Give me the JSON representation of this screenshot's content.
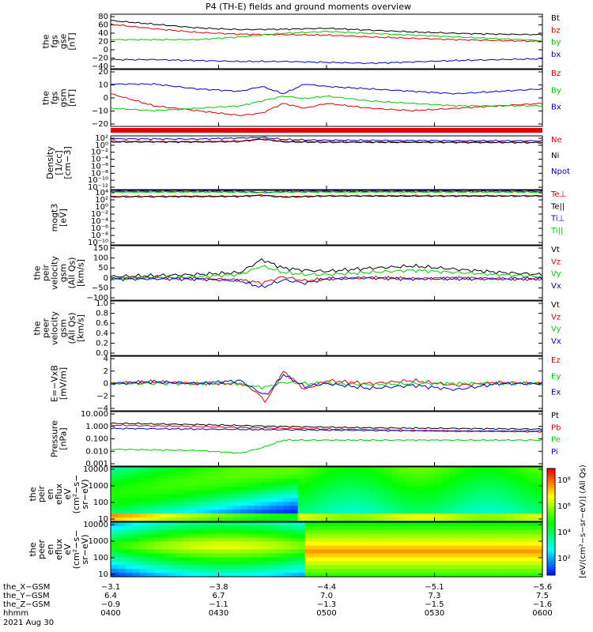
{
  "title": "P4 (TH-E) fields and ground moments overview",
  "colors": {
    "black": "#000000",
    "red": "#e00000",
    "green": "#00cc00",
    "blue": "#0000cc"
  },
  "chart_data": [
    {
      "id": "fgs_gse",
      "type": "line",
      "ylabel": [
        "the",
        "fgs",
        "gse",
        "[nT]"
      ],
      "yticks": [
        "80",
        "60",
        "40",
        "20",
        "0",
        "−20",
        "−40"
      ],
      "ylim": [
        -40,
        80
      ],
      "legend": [
        "Bt",
        "bz",
        "by",
        "bx"
      ],
      "series": [
        {
          "name": "Bt",
          "color": "#000000",
          "x": [
            0,
            0.1,
            0.2,
            0.3,
            0.4,
            0.5,
            0.6,
            0.7,
            0.8,
            0.9,
            1
          ],
          "values": [
            66,
            58,
            50,
            46,
            47,
            49,
            45,
            41,
            38,
            36,
            35
          ]
        },
        {
          "name": "bz",
          "color": "#e00000",
          "x": [
            0,
            0.1,
            0.2,
            0.3,
            0.4,
            0.5,
            0.6,
            0.7,
            0.8,
            0.9,
            1
          ],
          "values": [
            58,
            48,
            40,
            36,
            35,
            34,
            30,
            27,
            24,
            22,
            20
          ]
        },
        {
          "name": "by",
          "color": "#00cc00",
          "x": [
            0,
            0.1,
            0.2,
            0.3,
            0.4,
            0.5,
            0.6,
            0.7,
            0.8,
            0.9,
            1
          ],
          "values": [
            24,
            24,
            24,
            30,
            38,
            42,
            38,
            34,
            30,
            26,
            22
          ]
        },
        {
          "name": "bx",
          "color": "#0000cc",
          "x": [
            0,
            0.1,
            0.2,
            0.3,
            0.4,
            0.5,
            0.6,
            0.7,
            0.8,
            0.9,
            1
          ],
          "values": [
            -20,
            -20,
            -22,
            -24,
            -24,
            -26,
            -28,
            -25,
            -22,
            -20,
            -18
          ]
        }
      ]
    },
    {
      "id": "fgs_gsm",
      "type": "line",
      "ylabel": [
        "the",
        "fgs",
        "gsm",
        "[nT]"
      ],
      "yticks": [
        "20",
        "10",
        "0",
        "−10",
        "−20"
      ],
      "ylim": [
        -25,
        22
      ],
      "legend": [
        "Bz",
        "By",
        "Bx"
      ],
      "series": [
        {
          "name": "Bz",
          "color": "#e00000",
          "x": [
            0,
            0.1,
            0.2,
            0.3,
            0.35,
            0.4,
            0.45,
            0.5,
            0.6,
            0.7,
            0.8,
            0.9,
            1
          ],
          "values": [
            2,
            -8,
            -12,
            -16,
            -14,
            -6,
            -10,
            -6,
            -10,
            -12,
            -10,
            -8,
            -6
          ]
        },
        {
          "name": "By",
          "color": "#00cc00",
          "x": [
            0,
            0.1,
            0.2,
            0.3,
            0.35,
            0.4,
            0.45,
            0.5,
            0.6,
            0.7,
            0.8,
            0.9,
            1
          ],
          "values": [
            -10,
            -12,
            -10,
            -8,
            -4,
            0,
            -2,
            0,
            -4,
            -6,
            -8,
            -8,
            -8
          ]
        },
        {
          "name": "Bx",
          "color": "#0000cc",
          "x": [
            0,
            0.1,
            0.2,
            0.3,
            0.35,
            0.4,
            0.45,
            0.5,
            0.6,
            0.7,
            0.8,
            0.9,
            1
          ],
          "values": [
            10,
            10,
            6,
            4,
            8,
            2,
            10,
            8,
            6,
            4,
            2,
            4,
            6
          ]
        }
      ]
    },
    {
      "id": "density",
      "type": "line",
      "log": true,
      "ylabel": [
        "Density",
        "[1/cc]",
        "[cm−3]"
      ],
      "yticks": [
        "10²",
        "10⁰",
        "10⁻²",
        "10⁻⁴",
        "10⁻⁶",
        "10⁻⁸",
        "10⁻¹⁰",
        "10⁻¹²"
      ],
      "ylim": [
        -13,
        2
      ],
      "legend": [
        "Ne",
        "Ni",
        "Npot"
      ],
      "series": [
        {
          "name": "Ne",
          "color": "#e00000",
          "x": [
            0,
            0.2,
            0.3,
            0.35,
            0.4,
            0.5,
            0.7,
            1
          ],
          "values": [
            0.5,
            0.4,
            0.6,
            1,
            0.5,
            0.4,
            0.3,
            0.2
          ]
        },
        {
          "name": "Ni",
          "color": "#000000",
          "x": [
            0,
            0.2,
            0.3,
            0.35,
            0.4,
            0.5,
            0.7,
            1
          ],
          "values": [
            0.3,
            0.3,
            0.4,
            1.2,
            0.3,
            0.2,
            0.2,
            0.1
          ]
        },
        {
          "name": "Npot",
          "color": "#0000cc",
          "x": [
            0,
            0.2,
            0.3,
            0.35,
            0.4,
            0.5,
            0.7,
            1
          ],
          "values": [
            1.2,
            1.1,
            1.4,
            1.6,
            1.0,
            0.8,
            0.7,
            0.6
          ]
        }
      ]
    },
    {
      "id": "temp",
      "type": "line",
      "log": true,
      "ylabel": [
        "mogt3",
        "[eV]"
      ],
      "yticks": [
        "10⁴",
        "10²",
        "10⁰",
        "10⁻²",
        "10⁻⁴",
        "10⁻⁶",
        "10⁻⁸",
        "10⁻¹⁰"
      ],
      "ylim": [
        -11,
        4.3
      ],
      "legend": [
        "Te⊥",
        "Te||",
        "Ti⊥",
        "Ti||"
      ],
      "series": [
        {
          "name": "Te⊥",
          "color": "#e00000",
          "x": [
            0,
            0.3,
            0.35,
            0.4,
            0.5,
            1
          ],
          "values": [
            2.6,
            2.7,
            3.0,
            2.5,
            2.8,
            2.8
          ]
        },
        {
          "name": "Te||",
          "color": "#000000",
          "x": [
            0,
            0.3,
            0.35,
            0.4,
            0.5,
            1
          ],
          "values": [
            2.5,
            2.6,
            2.9,
            2.4,
            2.7,
            2.7
          ]
        },
        {
          "name": "Ti⊥",
          "color": "#0000cc",
          "x": [
            0,
            0.3,
            0.35,
            0.4,
            0.5,
            1
          ],
          "values": [
            4.0,
            4.0,
            3.7,
            4.0,
            4.0,
            4.0
          ]
        },
        {
          "name": "Ti||",
          "color": "#00cc00",
          "x": [
            0,
            0.3,
            0.35,
            0.4,
            0.5,
            1
          ],
          "values": [
            3.8,
            3.8,
            3.6,
            3.8,
            3.8,
            3.8
          ]
        }
      ]
    },
    {
      "id": "peir_velocity",
      "type": "line",
      "ylabel": [
        "the",
        "peir",
        "velocity",
        "gsm",
        "(All Qs)",
        "[km/s]"
      ],
      "yticks": [
        "150",
        "100",
        "50",
        "0",
        "−50",
        "−100"
      ],
      "ylim": [
        -100,
        155
      ],
      "legend": [
        "Vt",
        "Vz",
        "Vy",
        "Vx"
      ],
      "series": [
        {
          "name": "Vt",
          "color": "#000000",
          "x": [
            0,
            0.1,
            0.2,
            0.3,
            0.35,
            0.4,
            0.45,
            0.5,
            0.6,
            0.7,
            0.8,
            0.9,
            1
          ],
          "values": [
            10,
            15,
            20,
            30,
            90,
            50,
            40,
            35,
            50,
            60,
            45,
            30,
            20
          ]
        },
        {
          "name": "Vz",
          "color": "#e00000",
          "x": [
            0,
            0.1,
            0.2,
            0.3,
            0.35,
            0.4,
            0.45,
            0.5,
            0.6,
            0.7,
            0.8,
            0.9,
            1
          ],
          "values": [
            0,
            5,
            0,
            -5,
            -20,
            10,
            -10,
            0,
            5,
            0,
            5,
            0,
            0
          ]
        },
        {
          "name": "Vy",
          "color": "#00cc00",
          "x": [
            0,
            0.1,
            0.2,
            0.3,
            0.35,
            0.4,
            0.45,
            0.5,
            0.6,
            0.7,
            0.8,
            0.9,
            1
          ],
          "values": [
            0,
            5,
            10,
            20,
            60,
            30,
            20,
            20,
            30,
            40,
            30,
            20,
            10
          ]
        },
        {
          "name": "Vx",
          "color": "#0000cc",
          "x": [
            0,
            0.1,
            0.2,
            0.3,
            0.35,
            0.4,
            0.45,
            0.5,
            0.6,
            0.7,
            0.8,
            0.9,
            1
          ],
          "values": [
            0,
            0,
            0,
            -10,
            -40,
            -5,
            -20,
            0,
            5,
            0,
            0,
            0,
            0
          ]
        }
      ]
    },
    {
      "id": "peer_velocity",
      "type": "line",
      "ylabel": [
        "the",
        "peer",
        "velocity",
        "gsm",
        "(All Qs)",
        "[km/s]"
      ],
      "yticks": [
        "1.0",
        "0.8",
        "0.6",
        "0.4",
        "0.2",
        "0.0"
      ],
      "ylim": [
        0,
        1
      ],
      "legend": [
        "Vt",
        "Vz",
        "Vy",
        "Vx"
      ],
      "series": []
    },
    {
      "id": "efield",
      "type": "line",
      "ylabel": [
        "E=−VxB",
        "[mV/m]"
      ],
      "yticks": [
        "4",
        "2",
        "0",
        "−2",
        "−4"
      ],
      "ylim": [
        -4.5,
        4.5
      ],
      "legend": [
        "Ez",
        "Ey",
        "Ex"
      ],
      "series": [
        {
          "name": "Ez",
          "color": "#e00000",
          "x": [
            0,
            0.1,
            0.2,
            0.3,
            0.33,
            0.36,
            0.4,
            0.45,
            0.5,
            0.6,
            0.7,
            0.8,
            0.9,
            1
          ],
          "values": [
            0,
            0.3,
            0,
            0,
            -1,
            -3,
            2,
            -1,
            0.5,
            0,
            0.5,
            -0.3,
            0.2,
            0
          ]
        },
        {
          "name": "Ey",
          "color": "#00cc00",
          "x": [
            0,
            0.1,
            0.2,
            0.3,
            0.33,
            0.36,
            0.4,
            0.45,
            0.5,
            0.6,
            0.7,
            0.8,
            0.9,
            1
          ],
          "values": [
            0,
            0,
            0,
            0,
            -0.5,
            -0.6,
            0.2,
            0,
            0,
            -0.2,
            0,
            0,
            0,
            0
          ]
        },
        {
          "name": "Ex",
          "color": "#0000cc",
          "x": [
            0,
            0.1,
            0.2,
            0.3,
            0.33,
            0.36,
            0.4,
            0.45,
            0.5,
            0.6,
            0.7,
            0.8,
            0.9,
            1
          ],
          "values": [
            0,
            0.3,
            0,
            0.5,
            -0.8,
            -2,
            1.5,
            -0.5,
            0,
            -0.8,
            -0.3,
            -1,
            0,
            0
          ]
        }
      ]
    },
    {
      "id": "pressure",
      "type": "line",
      "log": true,
      "ylabel": [
        "Pressure",
        "[nPa]"
      ],
      "yticks": [
        "10.000",
        "1.000",
        "0.100",
        "0.010",
        "0.001"
      ],
      "ylim": [
        -3,
        1.2
      ],
      "legend": [
        "Pt",
        "Pb",
        "Pe",
        "Pi"
      ],
      "series": [
        {
          "name": "Pt",
          "color": "#000000",
          "x": [
            0,
            0.2,
            0.4,
            0.6,
            0.8,
            1
          ],
          "values": [
            0.3,
            0.2,
            0.05,
            -0.05,
            -0.1,
            -0.15
          ]
        },
        {
          "name": "Pb",
          "color": "#e00000",
          "x": [
            0,
            0.2,
            0.4,
            0.6,
            0.8,
            1
          ],
          "values": [
            0.15,
            0.05,
            -0.1,
            -0.2,
            -0.3,
            -0.35
          ]
        },
        {
          "name": "Pe",
          "color": "#00cc00",
          "x": [
            0,
            0.2,
            0.3,
            0.35,
            0.4,
            0.5,
            0.7,
            1
          ],
          "values": [
            -1.7,
            -1.8,
            -2.0,
            -1.6,
            -1.0,
            -1.0,
            -1.0,
            -1.0
          ]
        },
        {
          "name": "Pi",
          "color": "#0000cc",
          "x": [
            0,
            0.2,
            0.4,
            0.6,
            0.8,
            1
          ],
          "values": [
            -0.1,
            -0.15,
            -0.2,
            -0.25,
            -0.3,
            -0.3
          ]
        }
      ]
    },
    {
      "id": "peir_spec",
      "type": "heatmap",
      "ylabel": [
        "the",
        "peir",
        "en",
        "eflux",
        "eV",
        "(cm²−s−",
        "sr−eV)"
      ],
      "yticks": [
        "10000",
        "1000",
        "100",
        "10"
      ],
      "ylim": [
        5,
        20000
      ]
    },
    {
      "id": "peer_spec",
      "type": "heatmap",
      "ylabel": [
        "the",
        "peer",
        "en",
        "eflux",
        "eV",
        "(cm²−s−",
        "sr−eV)"
      ],
      "yticks": [
        "10000",
        "1000",
        "100",
        "10"
      ],
      "ylim": [
        5,
        20000
      ]
    }
  ],
  "colorbar": {
    "ticks": [
      "10⁸",
      "10⁶",
      "10⁴",
      "10²"
    ],
    "label": "[eV/(cm²−s−sr−eV)] (All Qs)"
  },
  "xaxis": {
    "rows": [
      {
        "label": "the_X−GSM",
        "values": [
          "−3.1",
          "−3.8",
          "−4.4",
          "−5.1",
          "−5.6"
        ]
      },
      {
        "label": "the_Y−GSM",
        "values": [
          "6.4",
          "6.7",
          "7.0",
          "7.3",
          "7.5"
        ]
      },
      {
        "label": "the_Z−GSM",
        "values": [
          "−0.9",
          "−1.1",
          "−1.3",
          "−1.5",
          "−1.6"
        ]
      },
      {
        "label": "hhmm",
        "values": [
          "0400",
          "0430",
          "0500",
          "0530",
          "0600"
        ]
      }
    ],
    "date": "2021 Aug 30"
  }
}
